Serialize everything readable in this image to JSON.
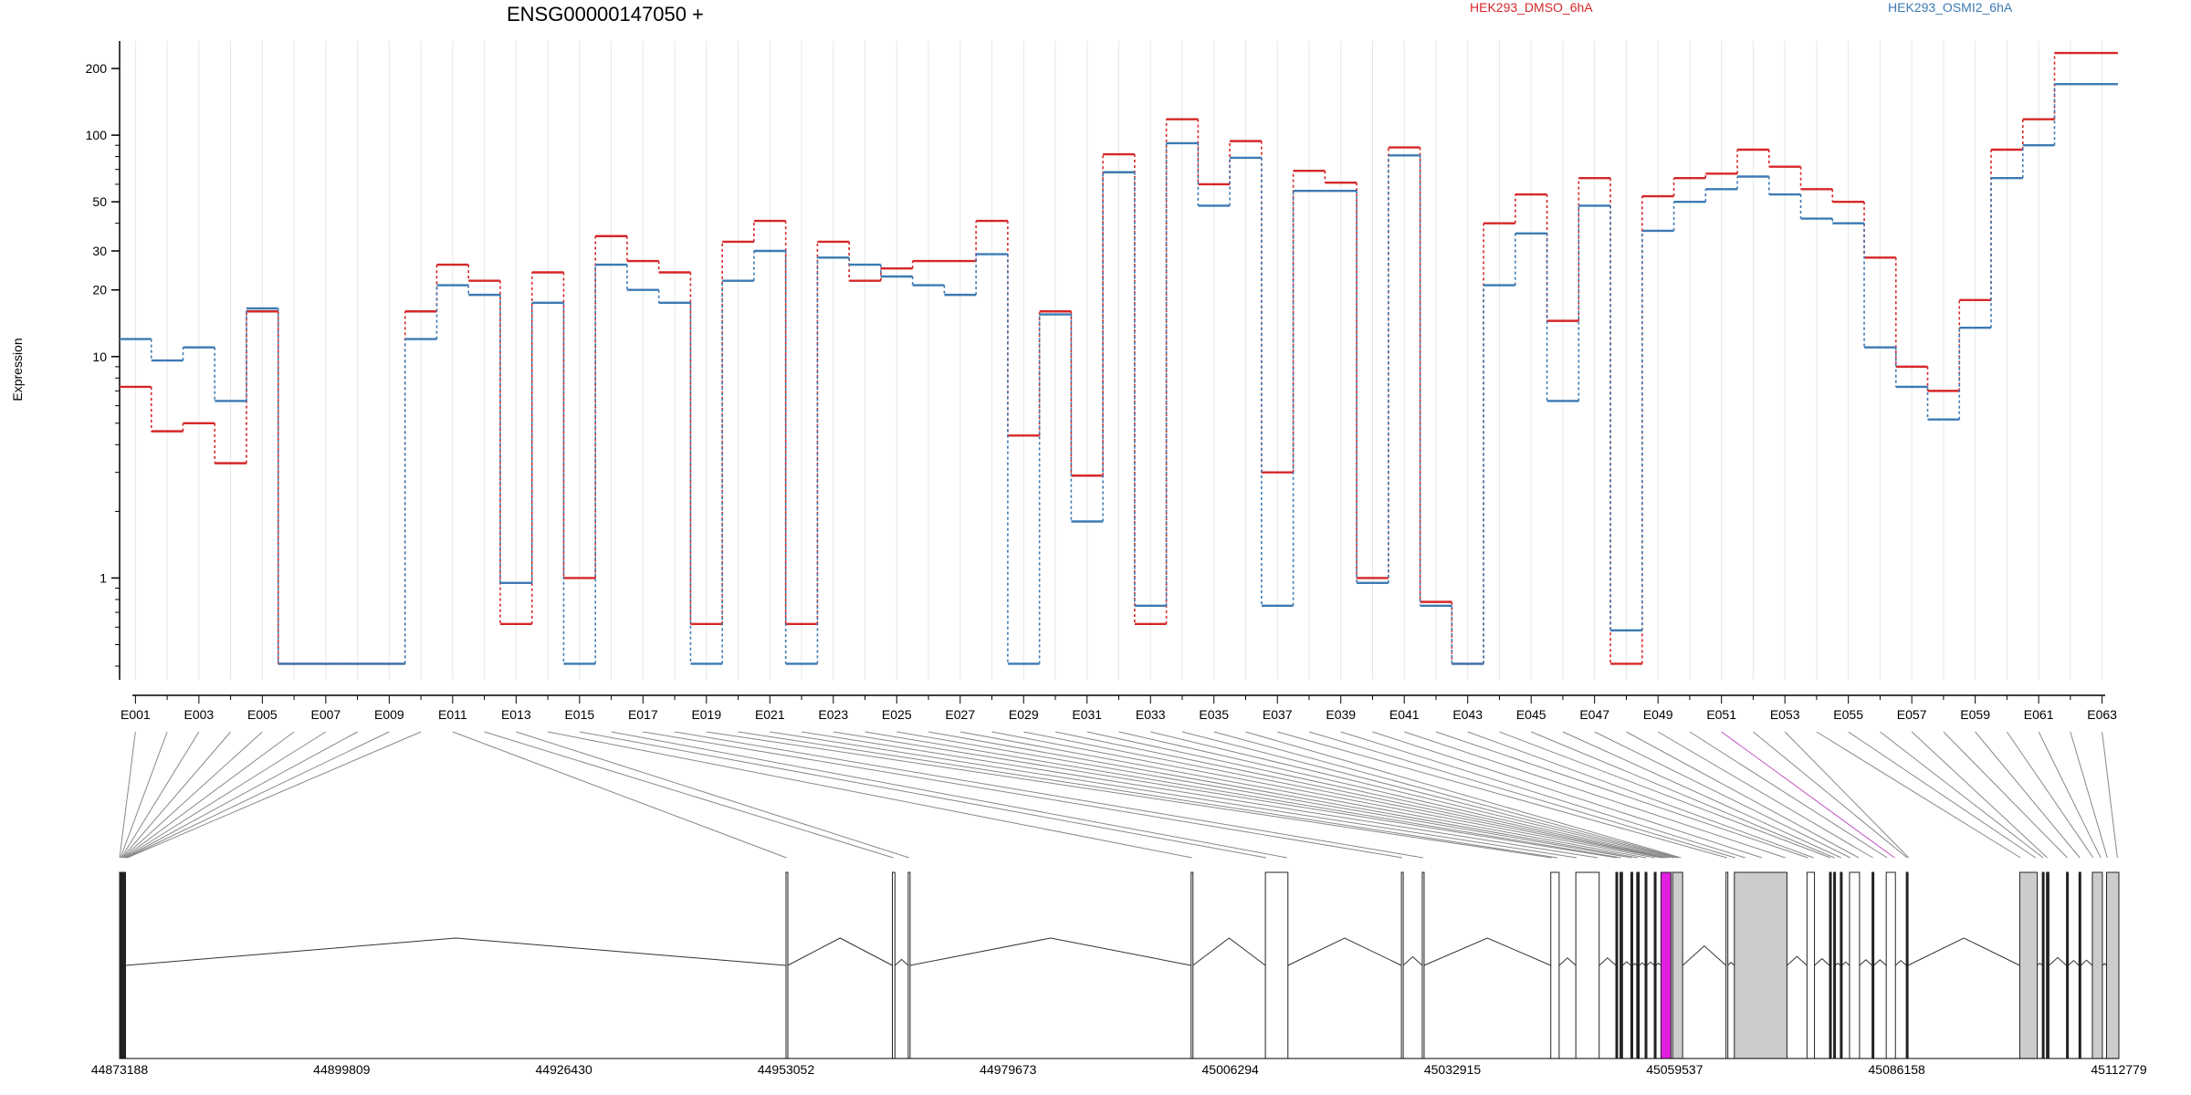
{
  "chart_data": {
    "type": "line",
    "title": "ENSG00000147050 +",
    "ylabel": "Expression",
    "yscale": "log",
    "ylim": [
      0.4,
      250
    ],
    "yticks": [
      1,
      10,
      20,
      30,
      50,
      100,
      200
    ],
    "legend_placement": "top",
    "categories": [
      "E001",
      "E002",
      "E003",
      "E004",
      "E005",
      "E006",
      "E007",
      "E008",
      "E009",
      "E010",
      "E011",
      "E012",
      "E013",
      "E014",
      "E015",
      "E016",
      "E017",
      "E018",
      "E019",
      "E020",
      "E021",
      "E022",
      "E023",
      "E024",
      "E025",
      "E026",
      "E027",
      "E028",
      "E029",
      "E030",
      "E031",
      "E032",
      "E033",
      "E034",
      "E035",
      "E036",
      "E037",
      "E038",
      "E039",
      "E040",
      "E041",
      "E042",
      "E043",
      "E044",
      "E045",
      "E046",
      "E047",
      "E048",
      "E049",
      "E050",
      "E051",
      "E052",
      "E053",
      "E054",
      "E055",
      "E056",
      "E057",
      "E058",
      "E059",
      "E060",
      "E061",
      "E062",
      "E063"
    ],
    "category_labels": [
      "E001",
      "E003",
      "E005",
      "E007",
      "E009",
      "E011",
      "E013",
      "E015",
      "E017",
      "E019",
      "E021",
      "E023",
      "E025",
      "E027",
      "E029",
      "E031",
      "E033",
      "E035",
      "E037",
      "E039",
      "E041",
      "E043",
      "E045",
      "E047",
      "E049",
      "E051",
      "E053",
      "E055",
      "E057",
      "E059",
      "E061",
      "E063"
    ],
    "highlighted_exon": "E051",
    "series": [
      {
        "name": "HEK293_DMSO_6hA",
        "color": "#d62728",
        "values": [
          7.3,
          4.6,
          5.0,
          3.3,
          16,
          0.41,
          0.41,
          0.41,
          0.41,
          16,
          26,
          22,
          0.62,
          24,
          1.0,
          35,
          27,
          24,
          0.62,
          33,
          41,
          0.62,
          33,
          22,
          25,
          27,
          27,
          41,
          4.4,
          16,
          2.9,
          82,
          0.62,
          118,
          60,
          94,
          3.0,
          69,
          61,
          1.0,
          88,
          0.78,
          0.41,
          40,
          54,
          14.5,
          64,
          0.41,
          53,
          64,
          67,
          86,
          72,
          57,
          50,
          28,
          9.0,
          7.0,
          18,
          86,
          118,
          235,
          235
        ]
      },
      {
        "name": "HEK293_OSMI2_6hA",
        "color": "#3d7ab3",
        "values": [
          12,
          9.6,
          11,
          6.3,
          16.5,
          0.41,
          0.41,
          0.41,
          0.41,
          12,
          21,
          19,
          0.95,
          17.5,
          0.41,
          26,
          20,
          17.5,
          0.41,
          22,
          30,
          0.41,
          28,
          26,
          23,
          21,
          19,
          29,
          0.41,
          15.5,
          1.8,
          68,
          0.75,
          92,
          48,
          79,
          0.75,
          56,
          56,
          0.95,
          81,
          0.75,
          0.41,
          21,
          36,
          6.3,
          48,
          0.58,
          37,
          50,
          57,
          65,
          54,
          42,
          40,
          11,
          7.3,
          5.2,
          13.5,
          64,
          90,
          170,
          170
        ]
      }
    ],
    "gene_model": {
      "coordinates": [
        "44873188",
        "44899809",
        "44926430",
        "44953052",
        "44979673",
        "45006294",
        "45032915",
        "45059537",
        "45086158",
        "45112779"
      ]
    }
  }
}
